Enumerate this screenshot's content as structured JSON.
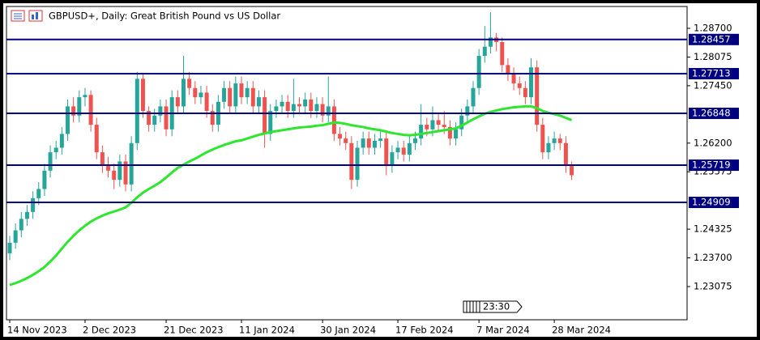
{
  "chart_data": {
    "type": "candlestick",
    "title": "GBPUSD+, Daily:  Great British Pound vs US Dollar",
    "time_marker": "23:30",
    "up_color": "#26a69a",
    "down_color": "#ef5350",
    "categories": [
      "14 Nov 2023",
      null,
      null,
      null,
      null,
      null,
      null,
      null,
      null,
      null,
      null,
      null,
      null,
      "2 Dec 2023",
      null,
      null,
      null,
      null,
      null,
      null,
      null,
      null,
      null,
      null,
      null,
      null,
      null,
      "21 Dec 2023",
      null,
      null,
      null,
      null,
      null,
      null,
      null,
      null,
      null,
      null,
      null,
      null,
      "11 Jan 2024",
      null,
      null,
      null,
      null,
      null,
      null,
      null,
      null,
      null,
      null,
      null,
      null,
      null,
      "30 Jan 2024",
      null,
      null,
      null,
      null,
      null,
      null,
      null,
      null,
      null,
      null,
      null,
      null,
      "17 Feb 2024",
      null,
      null,
      null,
      null,
      null,
      null,
      null,
      null,
      null,
      null,
      null,
      null,
      null,
      "7 Mar 2024",
      null,
      null,
      null,
      null,
      null,
      null,
      null,
      null,
      null,
      null,
      null,
      null,
      "28 Mar 2024",
      null,
      null,
      null
    ],
    "ohlc": [
      [
        1.238,
        1.2418,
        1.2365,
        1.2403
      ],
      [
        1.2403,
        1.2445,
        1.239,
        1.243
      ],
      [
        1.243,
        1.247,
        1.2415,
        1.2455
      ],
      [
        1.2455,
        1.2485,
        1.244,
        1.247
      ],
      [
        1.247,
        1.2515,
        1.2455,
        1.25
      ],
      [
        1.25,
        1.2535,
        1.2485,
        1.252
      ],
      [
        1.252,
        1.2575,
        1.2505,
        1.256
      ],
      [
        1.256,
        1.2615,
        1.2545,
        1.26
      ],
      [
        1.26,
        1.2625,
        1.2585,
        1.261
      ],
      [
        1.261,
        1.2655,
        1.2595,
        1.264
      ],
      [
        1.264,
        1.2715,
        1.2625,
        1.27
      ],
      [
        1.27,
        1.272,
        1.2665,
        1.268
      ],
      [
        1.268,
        1.2735,
        1.2665,
        1.272
      ],
      [
        1.272,
        1.274,
        1.27,
        1.2725
      ],
      [
        1.2725,
        1.2735,
        1.2645,
        1.266
      ],
      [
        1.266,
        1.2675,
        1.2585,
        1.26
      ],
      [
        1.26,
        1.2615,
        1.2555,
        1.257
      ],
      [
        1.257,
        1.259,
        1.2545,
        1.256
      ],
      [
        1.256,
        1.2575,
        1.252,
        1.254
      ],
      [
        1.254,
        1.2595,
        1.2525,
        1.258
      ],
      [
        1.258,
        1.2595,
        1.2515,
        1.253
      ],
      [
        1.253,
        1.2635,
        1.2515,
        1.262
      ],
      [
        1.262,
        1.2775,
        1.2605,
        1.276
      ],
      [
        1.276,
        1.277,
        1.2675,
        1.269
      ],
      [
        1.269,
        1.27,
        1.2645,
        1.266
      ],
      [
        1.266,
        1.2695,
        1.2645,
        1.268
      ],
      [
        1.268,
        1.2715,
        1.2665,
        1.27
      ],
      [
        1.27,
        1.2715,
        1.2635,
        1.265
      ],
      [
        1.265,
        1.2735,
        1.2635,
        1.272
      ],
      [
        1.272,
        1.2735,
        1.2685,
        1.27
      ],
      [
        1.27,
        1.281,
        1.2685,
        1.276
      ],
      [
        1.276,
        1.2775,
        1.2725,
        1.274
      ],
      [
        1.274,
        1.2755,
        1.2705,
        1.272
      ],
      [
        1.272,
        1.2745,
        1.2705,
        1.273
      ],
      [
        1.273,
        1.2745,
        1.2675,
        1.269
      ],
      [
        1.269,
        1.2705,
        1.2645,
        1.266
      ],
      [
        1.266,
        1.2725,
        1.2645,
        1.271
      ],
      [
        1.271,
        1.2755,
        1.2695,
        1.274
      ],
      [
        1.274,
        1.2755,
        1.2685,
        1.27
      ],
      [
        1.27,
        1.2765,
        1.2685,
        1.275
      ],
      [
        1.275,
        1.2765,
        1.2705,
        1.272
      ],
      [
        1.272,
        1.2755,
        1.2705,
        1.274
      ],
      [
        1.274,
        1.2755,
        1.2685,
        1.27
      ],
      [
        1.27,
        1.2735,
        1.2685,
        1.272
      ],
      [
        1.272,
        1.2735,
        1.261,
        1.264
      ],
      [
        1.264,
        1.2705,
        1.2625,
        1.269
      ],
      [
        1.269,
        1.2715,
        1.2675,
        1.27
      ],
      [
        1.27,
        1.2725,
        1.2685,
        1.271
      ],
      [
        1.271,
        1.2725,
        1.2675,
        1.269
      ],
      [
        1.269,
        1.276,
        1.2675,
        1.2705
      ],
      [
        1.2705,
        1.272,
        1.2685,
        1.27
      ],
      [
        1.27,
        1.273,
        1.2685,
        1.2715
      ],
      [
        1.2715,
        1.273,
        1.2675,
        1.269
      ],
      [
        1.269,
        1.272,
        1.2675,
        1.2705
      ],
      [
        1.2705,
        1.272,
        1.2665,
        1.268
      ],
      [
        1.268,
        1.2765,
        1.2665,
        1.27
      ],
      [
        1.27,
        1.2715,
        1.2625,
        1.264
      ],
      [
        1.264,
        1.2655,
        1.2615,
        1.263
      ],
      [
        1.263,
        1.2645,
        1.2605,
        1.262
      ],
      [
        1.262,
        1.2635,
        1.252,
        1.254
      ],
      [
        1.254,
        1.2625,
        1.2525,
        1.261
      ],
      [
        1.261,
        1.2645,
        1.2595,
        1.263
      ],
      [
        1.263,
        1.2645,
        1.2595,
        1.261
      ],
      [
        1.261,
        1.264,
        1.2595,
        1.2625
      ],
      [
        1.2625,
        1.2645,
        1.261,
        1.263
      ],
      [
        1.263,
        1.2645,
        1.255,
        1.257
      ],
      [
        1.257,
        1.2615,
        1.2555,
        1.26
      ],
      [
        1.26,
        1.2625,
        1.2585,
        1.261
      ],
      [
        1.261,
        1.2625,
        1.258,
        1.2595
      ],
      [
        1.2595,
        1.2635,
        1.258,
        1.262
      ],
      [
        1.262,
        1.2645,
        1.2605,
        1.263
      ],
      [
        1.263,
        1.2705,
        1.2615,
        1.266
      ],
      [
        1.266,
        1.2675,
        1.2635,
        1.265
      ],
      [
        1.265,
        1.27,
        1.2635,
        1.267
      ],
      [
        1.267,
        1.2685,
        1.2645,
        1.266
      ],
      [
        1.266,
        1.269,
        1.264,
        1.2655
      ],
      [
        1.2655,
        1.267,
        1.2615,
        1.263
      ],
      [
        1.263,
        1.2665,
        1.2615,
        1.265
      ],
      [
        1.265,
        1.2695,
        1.2635,
        1.268
      ],
      [
        1.268,
        1.2715,
        1.2665,
        1.27
      ],
      [
        1.27,
        1.2755,
        1.2685,
        1.274
      ],
      [
        1.274,
        1.2825,
        1.2725,
        1.281
      ],
      [
        1.281,
        1.2875,
        1.2795,
        1.283
      ],
      [
        1.283,
        1.2905,
        1.2815,
        1.285
      ],
      [
        1.285,
        1.286,
        1.282,
        1.284
      ],
      [
        1.284,
        1.285,
        1.2775,
        1.279
      ],
      [
        1.279,
        1.2805,
        1.2755,
        1.277
      ],
      [
        1.277,
        1.2785,
        1.2735,
        1.275
      ],
      [
        1.275,
        1.2765,
        1.2725,
        1.274
      ],
      [
        1.274,
        1.2755,
        1.2705,
        1.272
      ],
      [
        1.272,
        1.2805,
        1.2705,
        1.2785
      ],
      [
        1.2785,
        1.28,
        1.2645,
        1.266
      ],
      [
        1.266,
        1.2675,
        1.2585,
        1.26
      ],
      [
        1.26,
        1.2635,
        1.2585,
        1.262
      ],
      [
        1.262,
        1.2645,
        1.2605,
        1.263
      ],
      [
        1.263,
        1.264,
        1.2605,
        1.262
      ],
      [
        1.262,
        1.2635,
        1.2555,
        1.257
      ],
      [
        1.257,
        1.258,
        1.254,
        1.255
      ]
    ],
    "ma": {
      "color": "#2ee62e",
      "values": [
        1.2311,
        1.2315,
        1.232,
        1.2326,
        1.2333,
        1.2341,
        1.235,
        1.2362,
        1.2375,
        1.239,
        1.2405,
        1.2418,
        1.243,
        1.244,
        1.2449,
        1.2456,
        1.2462,
        1.2467,
        1.2471,
        1.2475,
        1.248,
        1.249,
        1.2502,
        1.2512,
        1.252,
        1.2527,
        1.2535,
        1.2545,
        1.2556,
        1.2566,
        1.2573,
        1.258,
        1.2586,
        1.2593,
        1.26,
        1.2606,
        1.2611,
        1.2616,
        1.262,
        1.2624,
        1.2626,
        1.263,
        1.2634,
        1.2638,
        1.2641,
        1.2644,
        1.2646,
        1.2648,
        1.265,
        1.2652,
        1.2654,
        1.2655,
        1.2656,
        1.2658,
        1.2659,
        1.2662,
        1.2665,
        1.2664,
        1.2662,
        1.2659,
        1.2657,
        1.2655,
        1.2652,
        1.265,
        1.2648,
        1.2645,
        1.2642,
        1.264,
        1.2638,
        1.2637,
        1.2638,
        1.264,
        1.2642,
        1.2644,
        1.2646,
        1.2648,
        1.265,
        1.2652,
        1.2658,
        1.2665,
        1.2672,
        1.2678,
        1.2684,
        1.2688,
        1.2691,
        1.2694,
        1.2696,
        1.2698,
        1.2699,
        1.27,
        1.27,
        1.2696,
        1.269,
        1.2686,
        1.2683,
        1.268,
        1.2675,
        1.267
      ]
    },
    "levels": {
      "color": "#000080",
      "values": [
        1.28457,
        1.27713,
        1.26848,
        1.25719,
        1.24909
      ]
    },
    "ylim": [
      1.22352,
      1.29141
    ],
    "yticks": [
      {
        "value": 1.287,
        "label": "1.28700"
      },
      {
        "value": 1.28075,
        "label": "1.28075"
      },
      {
        "value": 1.2745,
        "label": "1.27450"
      },
      {
        "value": 1.262,
        "label": "1.26200"
      },
      {
        "value": 1.25575,
        "label": "1.25575"
      },
      {
        "value": 1.24325,
        "label": "1.24325"
      },
      {
        "value": 1.237,
        "label": "1.23700"
      },
      {
        "value": 1.23075,
        "label": "1.23075"
      }
    ]
  }
}
